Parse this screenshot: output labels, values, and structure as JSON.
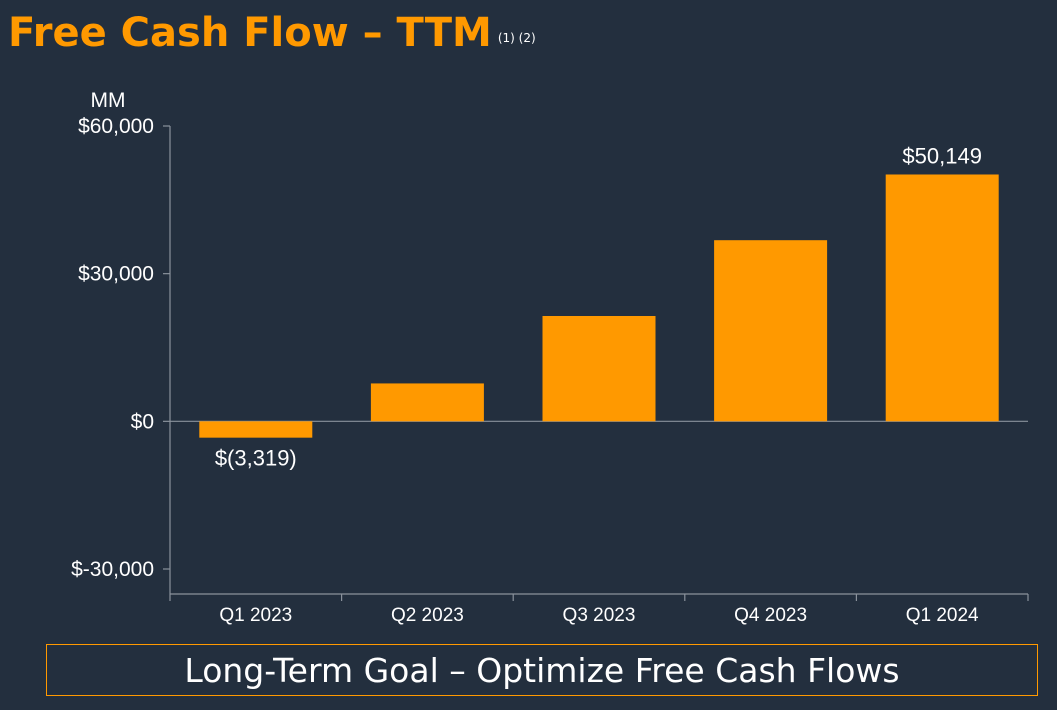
{
  "title": "Free Cash Flow – TTM",
  "title_footnotes": "(1) (2)",
  "goal_text": "Long-Term Goal – Optimize Free Cash Flows",
  "colors": {
    "background": "#232f3e",
    "accent": "#ff9900",
    "text": "#ffffff",
    "axis": "#8a929c"
  },
  "chart_data": {
    "type": "bar",
    "title": "Free Cash Flow – TTM",
    "ylabel": "MM",
    "xlabel": "",
    "categories": [
      "Q1 2023",
      "Q2 2023",
      "Q3 2023",
      "Q4 2023",
      "Q1 2024"
    ],
    "values": [
      -3319,
      7700,
      21400,
      36800,
      50149
    ],
    "data_labels": [
      "$(3,319)",
      "",
      "",
      "",
      "$50,149"
    ],
    "ylim": [
      -35000,
      60000
    ],
    "yticks": [
      {
        "value": 60000,
        "label": "$60,000"
      },
      {
        "value": 30000,
        "label": "$30,000"
      },
      {
        "value": 0,
        "label": "$0"
      },
      {
        "value": -30000,
        "label": "$-30,000"
      }
    ],
    "grid": false,
    "legend": "none"
  }
}
